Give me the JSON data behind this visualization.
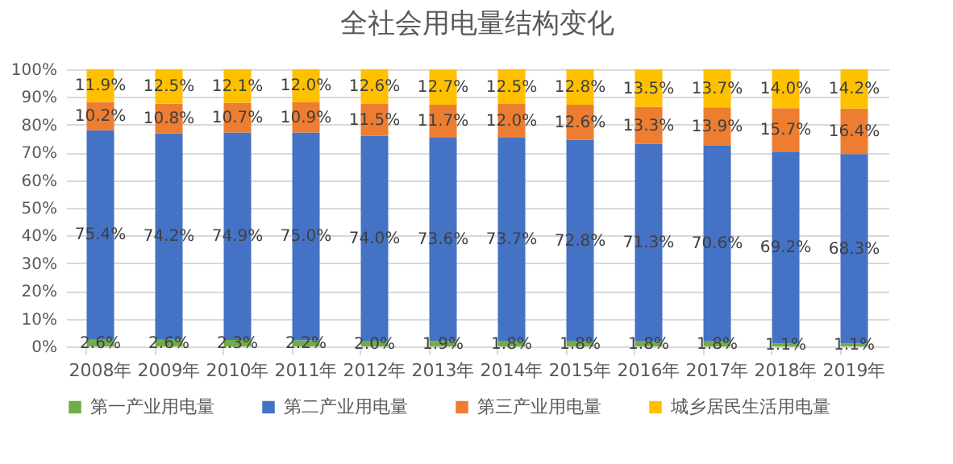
{
  "chart_data": {
    "type": "bar",
    "stacked": true,
    "title": "全社会用电量结构变化",
    "categories": [
      "2008年",
      "2009年",
      "2010年",
      "2011年",
      "2012年",
      "2013年",
      "2014年",
      "2015年",
      "2016年",
      "2017年",
      "2018年",
      "2019年"
    ],
    "series": [
      {
        "name": "第一产业用电量",
        "color": "#70ad47",
        "values": [
          2.6,
          2.6,
          2.3,
          2.2,
          2.0,
          1.9,
          1.8,
          1.8,
          1.8,
          1.8,
          1.1,
          1.1
        ],
        "value_labels": [
          "2.6%",
          "2.6%",
          "2.3%",
          "2.2%",
          "2.0%",
          "1.9%",
          "1.8%",
          "1.8%",
          "1.8%",
          "1.8%",
          "1.1%",
          "1.1%"
        ]
      },
      {
        "name": "第二产业用电量",
        "color": "#4472c4",
        "values": [
          75.4,
          74.2,
          74.9,
          75.0,
          74.0,
          73.6,
          73.7,
          72.8,
          71.3,
          70.6,
          69.2,
          68.3
        ],
        "value_labels": [
          "75.4%",
          "74.2%",
          "74.9%",
          "75.0%",
          "74.0%",
          "73.6%",
          "73.7%",
          "72.8%",
          "71.3%",
          "70.6%",
          "69.2%",
          "68.3%"
        ]
      },
      {
        "name": "第三产业用电量",
        "color": "#ed7d31",
        "values": [
          10.2,
          10.8,
          10.7,
          10.9,
          11.5,
          11.7,
          12.0,
          12.6,
          13.3,
          13.9,
          15.7,
          16.4
        ],
        "value_labels": [
          "10.2%",
          "10.8%",
          "10.7%",
          "10.9%",
          "11.5%",
          "11.7%",
          "12.0%",
          "12.6%",
          "13.3%",
          "13.9%",
          "15.7%",
          "16.4%"
        ]
      },
      {
        "name": "城乡居民生活用电量",
        "color": "#ffc000",
        "values": [
          11.9,
          12.5,
          12.1,
          12.0,
          12.6,
          12.7,
          12.5,
          12.8,
          13.5,
          13.7,
          14.0,
          14.2
        ],
        "value_labels": [
          "11.9%",
          "12.5%",
          "12.1%",
          "12.0%",
          "12.6%",
          "12.7%",
          "12.5%",
          "12.8%",
          "13.5%",
          "13.7%",
          "14.0%",
          "14.2%"
        ]
      }
    ],
    "ylim": [
      0,
      100
    ],
    "yticks": [
      {
        "value": 0,
        "label": "0%"
      },
      {
        "value": 10,
        "label": "10%"
      },
      {
        "value": 20,
        "label": "20%"
      },
      {
        "value": 30,
        "label": "30%"
      },
      {
        "value": 40,
        "label": "40%"
      },
      {
        "value": 50,
        "label": "50%"
      },
      {
        "value": 60,
        "label": "60%"
      },
      {
        "value": 70,
        "label": "70%"
      },
      {
        "value": 80,
        "label": "80%"
      },
      {
        "value": 90,
        "label": "90%"
      },
      {
        "value": 100,
        "label": "100%"
      }
    ],
    "grid": "y",
    "legend": "bottom"
  }
}
